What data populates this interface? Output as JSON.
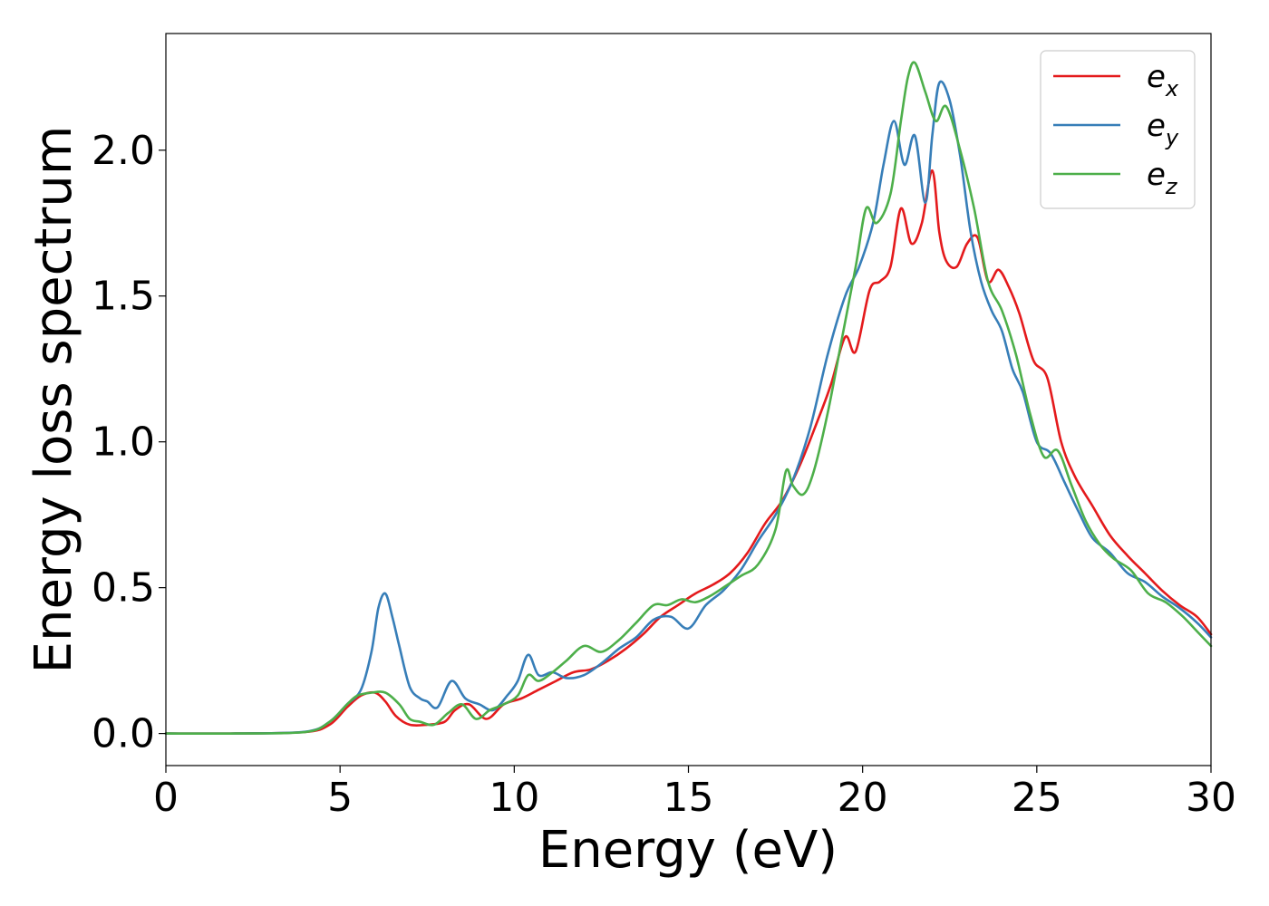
{
  "chart_data": {
    "type": "line",
    "xlabel": "Energy (eV)",
    "ylabel": "Energy loss spectrum",
    "xlim": [
      0,
      30
    ],
    "ylim": [
      -0.11,
      2.4
    ],
    "xticks": [
      0,
      5,
      10,
      15,
      20,
      25,
      30
    ],
    "xtick_labels": [
      "0",
      "5",
      "10",
      "15",
      "20",
      "25",
      "30"
    ],
    "yticks": [
      0.0,
      0.5,
      1.0,
      1.5,
      2.0
    ],
    "ytick_labels": [
      "0.0",
      "0.5",
      "1.0",
      "1.5",
      "2.0"
    ],
    "grid": false,
    "legend_position": "top-right",
    "series": [
      {
        "name": "e_x",
        "label_base": "e",
        "label_sub": "x",
        "color": "#e41a1c",
        "x": [
          0,
          2,
          4,
          4.7,
          5.2,
          5.6,
          6.0,
          6.3,
          6.6,
          7.0,
          7.5,
          8.0,
          8.3,
          8.7,
          9.2,
          9.7,
          10.2,
          10.7,
          11.2,
          11.7,
          12.2,
          12.7,
          13.2,
          13.7,
          14.2,
          14.7,
          15.2,
          15.7,
          16.2,
          16.7,
          17.2,
          17.7,
          18.2,
          18.7,
          19.1,
          19.5,
          19.8,
          20.2,
          20.5,
          20.8,
          21.1,
          21.4,
          21.7,
          22.0,
          22.2,
          22.4,
          22.7,
          23.0,
          23.3,
          23.6,
          23.9,
          24.2,
          24.5,
          24.9,
          25.3,
          25.7,
          26.1,
          26.6,
          27.1,
          27.6,
          28.1,
          28.6,
          29.1,
          29.6,
          30.0
        ],
        "y": [
          0.0,
          0.0,
          0.005,
          0.03,
          0.09,
          0.13,
          0.14,
          0.11,
          0.06,
          0.03,
          0.03,
          0.04,
          0.08,
          0.1,
          0.05,
          0.1,
          0.12,
          0.15,
          0.18,
          0.21,
          0.22,
          0.25,
          0.29,
          0.34,
          0.4,
          0.44,
          0.48,
          0.51,
          0.55,
          0.62,
          0.72,
          0.8,
          0.92,
          1.07,
          1.2,
          1.36,
          1.31,
          1.52,
          1.55,
          1.6,
          1.8,
          1.68,
          1.75,
          1.93,
          1.72,
          1.62,
          1.6,
          1.68,
          1.7,
          1.55,
          1.59,
          1.53,
          1.44,
          1.28,
          1.22,
          1.0,
          0.88,
          0.78,
          0.68,
          0.61,
          0.55,
          0.49,
          0.44,
          0.4,
          0.34
        ]
      },
      {
        "name": "e_y",
        "label_base": "e",
        "label_sub": "y",
        "color": "#377eb8",
        "x": [
          0,
          2,
          4,
          4.7,
          5.2,
          5.6,
          5.9,
          6.1,
          6.3,
          6.5,
          6.7,
          7.0,
          7.3,
          7.5,
          7.8,
          8.2,
          8.6,
          9.0,
          9.4,
          9.8,
          10.1,
          10.4,
          10.7,
          11.1,
          11.5,
          12.0,
          12.5,
          13.0,
          13.5,
          14.0,
          14.5,
          15.0,
          15.5,
          16.0,
          16.5,
          17.0,
          17.5,
          18.0,
          18.5,
          19.0,
          19.5,
          19.9,
          20.3,
          20.6,
          20.9,
          21.2,
          21.5,
          21.8,
          22.0,
          22.2,
          22.5,
          22.8,
          23.1,
          23.4,
          23.7,
          24.0,
          24.3,
          24.6,
          25.0,
          25.4,
          25.8,
          26.2,
          26.6,
          27.1,
          27.6,
          28.1,
          28.6,
          29.1,
          29.6,
          30.0
        ],
        "y": [
          0.0,
          0.0,
          0.006,
          0.04,
          0.1,
          0.15,
          0.28,
          0.43,
          0.48,
          0.4,
          0.3,
          0.16,
          0.12,
          0.11,
          0.09,
          0.18,
          0.12,
          0.1,
          0.08,
          0.13,
          0.18,
          0.27,
          0.2,
          0.21,
          0.19,
          0.2,
          0.24,
          0.29,
          0.33,
          0.39,
          0.4,
          0.36,
          0.44,
          0.49,
          0.56,
          0.66,
          0.75,
          0.87,
          1.05,
          1.3,
          1.5,
          1.6,
          1.75,
          1.95,
          2.1,
          1.95,
          2.05,
          1.82,
          2.05,
          2.23,
          2.17,
          1.98,
          1.72,
          1.55,
          1.45,
          1.38,
          1.25,
          1.17,
          1.0,
          0.96,
          0.86,
          0.76,
          0.67,
          0.62,
          0.55,
          0.52,
          0.47,
          0.43,
          0.38,
          0.33
        ]
      },
      {
        "name": "e_z",
        "label_base": "e",
        "label_sub": "z",
        "color": "#4daf4a",
        "x": [
          0,
          2,
          4,
          4.7,
          5.2,
          5.5,
          5.9,
          6.3,
          6.7,
          7.0,
          7.3,
          7.7,
          8.1,
          8.5,
          8.9,
          9.3,
          9.7,
          10.1,
          10.4,
          10.7,
          11.1,
          11.5,
          12.0,
          12.5,
          13.0,
          13.5,
          14.0,
          14.4,
          14.8,
          15.2,
          15.6,
          16.0,
          16.5,
          17.0,
          17.5,
          17.8,
          18.0,
          18.3,
          18.6,
          19.0,
          19.4,
          19.8,
          20.1,
          20.4,
          20.8,
          21.1,
          21.3,
          21.5,
          21.8,
          22.1,
          22.4,
          22.8,
          23.2,
          23.6,
          24.0,
          24.4,
          24.8,
          25.2,
          25.6,
          26.0,
          26.4,
          26.8,
          27.2,
          27.7,
          28.2,
          28.7,
          29.2,
          29.6,
          30.0
        ],
        "y": [
          0.0,
          0.0,
          0.005,
          0.04,
          0.1,
          0.13,
          0.14,
          0.14,
          0.1,
          0.05,
          0.04,
          0.03,
          0.07,
          0.1,
          0.05,
          0.08,
          0.1,
          0.13,
          0.2,
          0.18,
          0.21,
          0.25,
          0.3,
          0.28,
          0.32,
          0.38,
          0.44,
          0.44,
          0.46,
          0.45,
          0.47,
          0.5,
          0.54,
          0.58,
          0.7,
          0.9,
          0.85,
          0.82,
          0.9,
          1.1,
          1.35,
          1.6,
          1.8,
          1.75,
          1.85,
          2.1,
          2.25,
          2.3,
          2.2,
          2.1,
          2.15,
          2.0,
          1.8,
          1.55,
          1.45,
          1.3,
          1.1,
          0.95,
          0.97,
          0.85,
          0.73,
          0.65,
          0.6,
          0.56,
          0.48,
          0.45,
          0.4,
          0.35,
          0.3
        ]
      }
    ]
  }
}
